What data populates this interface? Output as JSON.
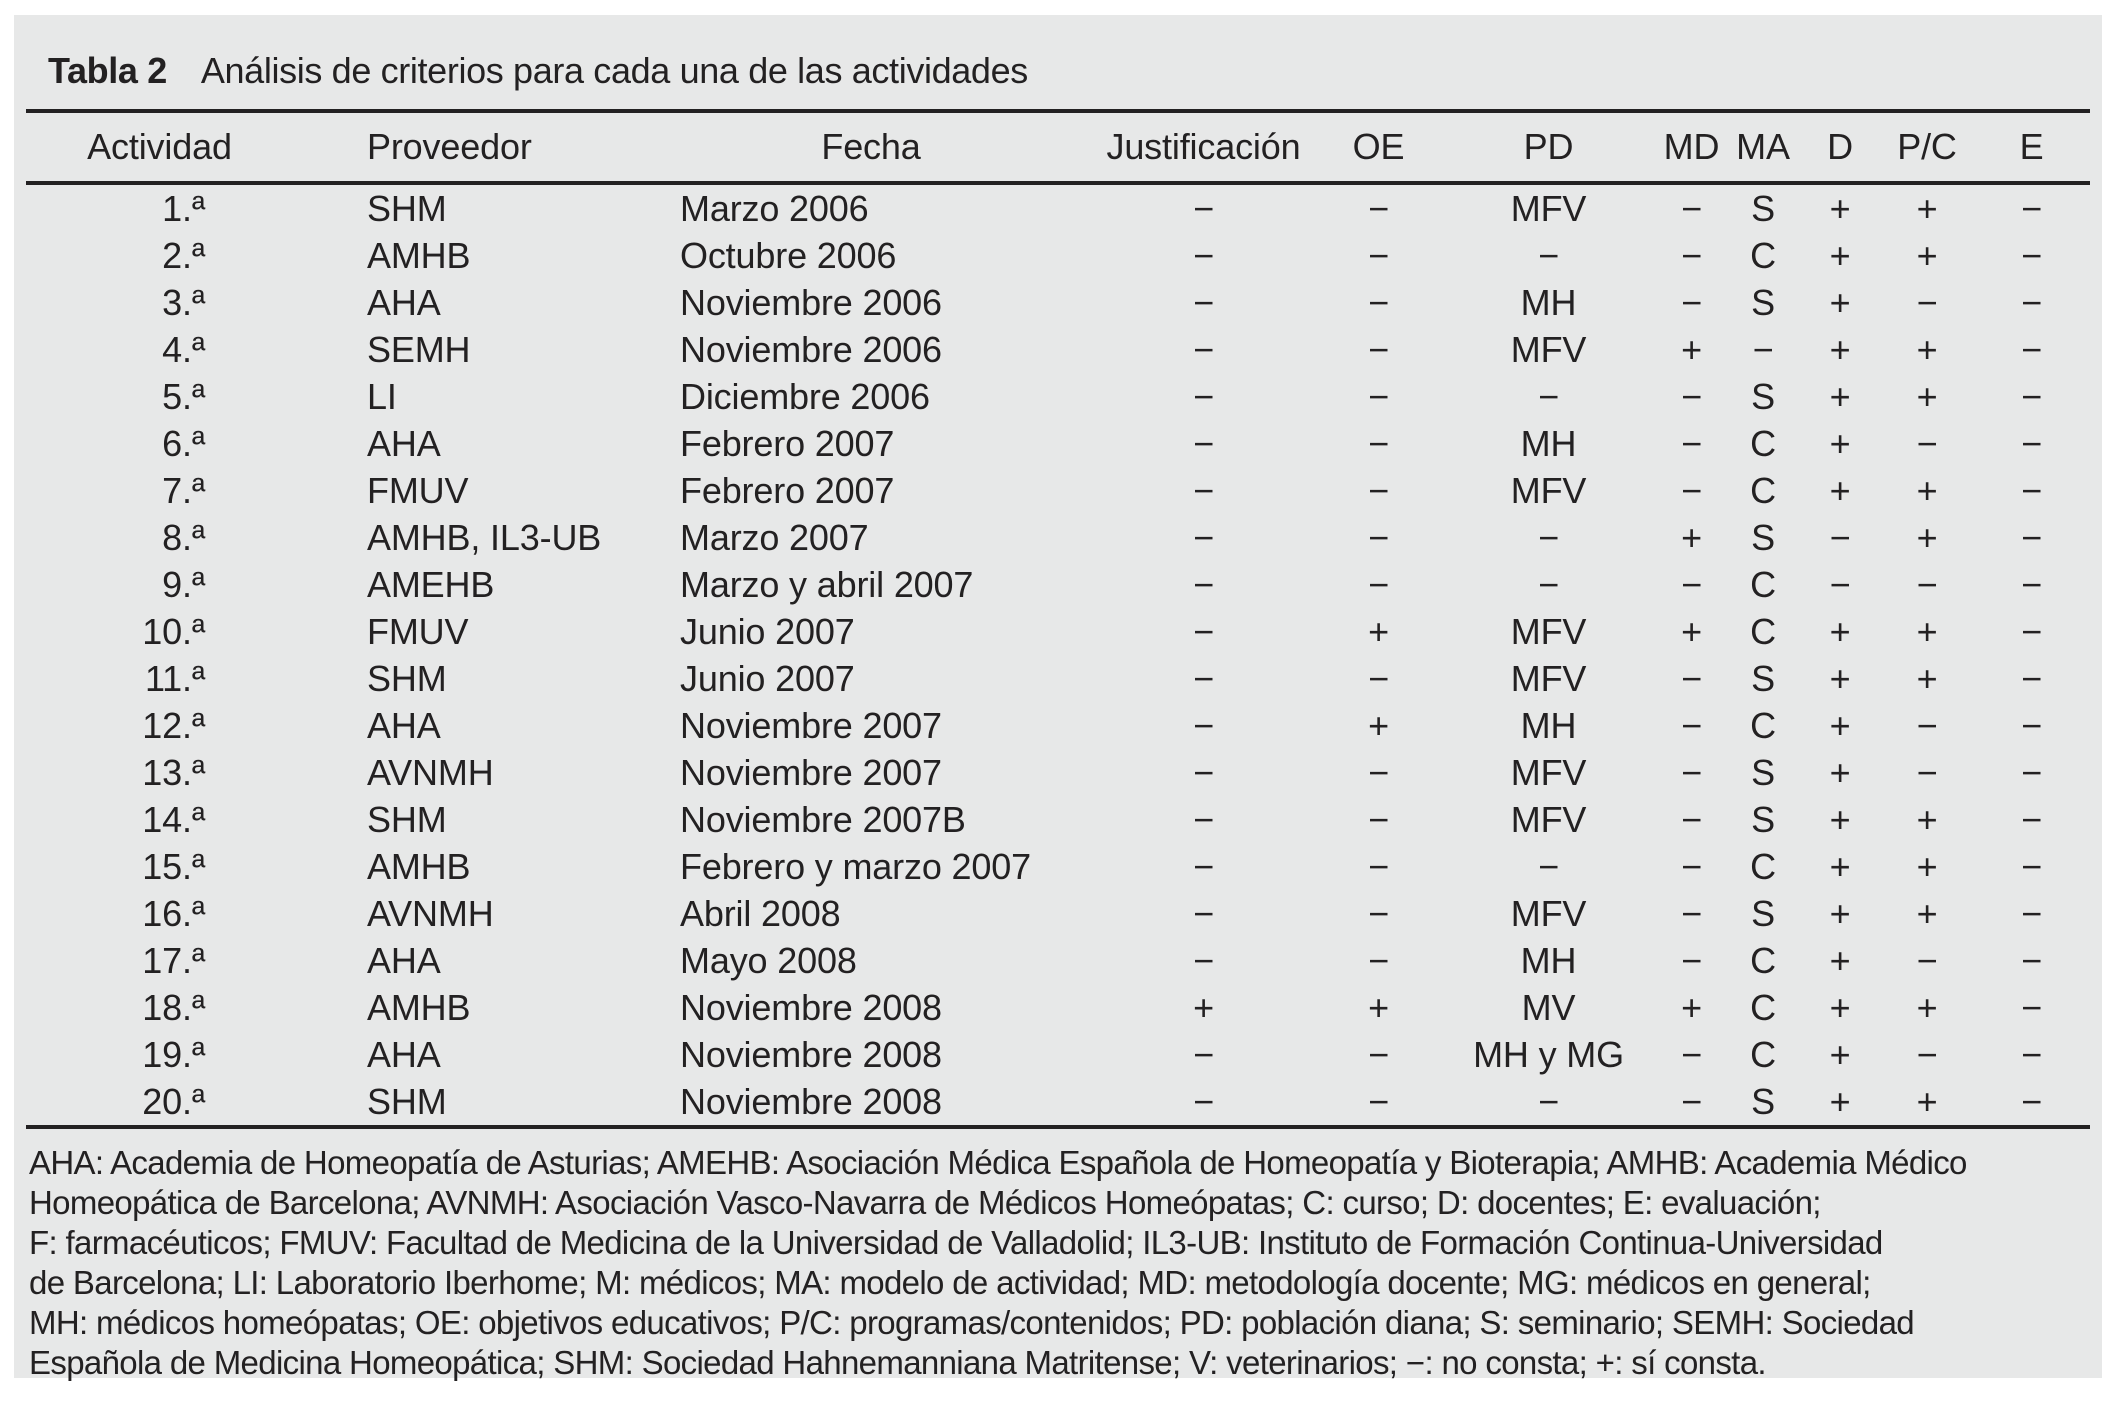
{
  "colors": {
    "panel_background": "#e7e8e8",
    "text": "#232122",
    "rule": "#232122"
  },
  "table": {
    "title_label": "Tabla 2",
    "title_text": "Análisis de criterios para cada una de las actividades",
    "columns": [
      "Actividad",
      "Proveedor",
      "Fecha",
      "Justificación",
      "OE",
      "PD",
      "MD",
      "MA",
      "D",
      "P/C",
      "E"
    ],
    "rows": [
      [
        "1.ª",
        "SHM",
        "Marzo 2006",
        "−",
        "−",
        "MFV",
        "−",
        "S",
        "+",
        "+",
        "−"
      ],
      [
        "2.ª",
        "AMHB",
        "Octubre 2006",
        "−",
        "−",
        "−",
        "−",
        "C",
        "+",
        "+",
        "−"
      ],
      [
        "3.ª",
        "AHA",
        "Noviembre 2006",
        "−",
        "−",
        "MH",
        "−",
        "S",
        "+",
        "−",
        "−"
      ],
      [
        "4.ª",
        "SEMH",
        "Noviembre 2006",
        "−",
        "−",
        "MFV",
        "+",
        "−",
        "+",
        "+",
        "−"
      ],
      [
        "5.ª",
        "LI",
        "Diciembre 2006",
        "−",
        "−",
        "−",
        "−",
        "S",
        "+",
        "+",
        "−"
      ],
      [
        "6.ª",
        "AHA",
        "Febrero 2007",
        "−",
        "−",
        "MH",
        "−",
        "C",
        "+",
        "−",
        "−"
      ],
      [
        "7.ª",
        "FMUV",
        "Febrero 2007",
        "−",
        "−",
        "MFV",
        "−",
        "C",
        "+",
        "+",
        "−"
      ],
      [
        "8.ª",
        "AMHB, IL3-UB",
        "Marzo 2007",
        "−",
        "−",
        "−",
        "+",
        "S",
        "−",
        "+",
        "−"
      ],
      [
        "9.ª",
        "AMEHB",
        "Marzo y abril 2007",
        "−",
        "−",
        "−",
        "−",
        "C",
        "−",
        "−",
        "−"
      ],
      [
        "10.ª",
        "FMUV",
        "Junio 2007",
        "−",
        "+",
        "MFV",
        "+",
        "C",
        "+",
        "+",
        "−"
      ],
      [
        "11.ª",
        "SHM",
        "Junio 2007",
        "−",
        "−",
        "MFV",
        "−",
        "S",
        "+",
        "+",
        "−"
      ],
      [
        "12.ª",
        "AHA",
        "Noviembre 2007",
        "−",
        "+",
        "MH",
        "−",
        "C",
        "+",
        "−",
        "−"
      ],
      [
        "13.ª",
        "AVNMH",
        "Noviembre 2007",
        "−",
        "−",
        "MFV",
        "−",
        "S",
        "+",
        "−",
        "−"
      ],
      [
        "14.ª",
        "SHM",
        "Noviembre 2007B",
        "−",
        "−",
        "MFV",
        "−",
        "S",
        "+",
        "+",
        "−"
      ],
      [
        "15.ª",
        "AMHB",
        "Febrero y marzo 2007",
        "−",
        "−",
        "−",
        "−",
        "C",
        "+",
        "+",
        "−"
      ],
      [
        "16.ª",
        "AVNMH",
        "Abril 2008",
        "−",
        "−",
        "MFV",
        "−",
        "S",
        "+",
        "+",
        "−"
      ],
      [
        "17.ª",
        "AHA",
        "Mayo 2008",
        "−",
        "−",
        "MH",
        "−",
        "C",
        "+",
        "−",
        "−"
      ],
      [
        "18.ª",
        "AMHB",
        "Noviembre 2008",
        "+",
        "+",
        "MV",
        "+",
        "C",
        "+",
        "+",
        "−"
      ],
      [
        "19.ª",
        "AHA",
        "Noviembre 2008",
        "−",
        "−",
        "MH y MG",
        "−",
        "C",
        "+",
        "−",
        "−"
      ],
      [
        "20.ª",
        "SHM",
        "Noviembre 2008",
        "−",
        "−",
        "−",
        "−",
        "S",
        "+",
        "+",
        "−"
      ]
    ],
    "footnote_lines": [
      "AHA: Academia de Homeopatía de Asturias; AMEHB: Asociación Médica Española de Homeopatía y Bioterapia; AMHB: Academia Médico",
      "Homeopática de Barcelona; AVNMH: Asociación Vasco-Navarra de Médicos Homeópatas; C: curso; D: docentes; E: evaluación;",
      "F: farmacéuticos; FMUV: Facultad de Medicina de la Universidad de Valladolid; IL3-UB: Instituto de Formación Continua-Universidad",
      "de Barcelona; LI: Laboratorio Iberhome; M: médicos; MA: modelo de actividad; MD: metodología docente; MG: médicos en general;",
      "MH: médicos homeópatas; OE: objetivos educativos; P/C: programas/contenidos; PD: población diana; S: seminario; SEMH: Sociedad",
      "Española de Medicina Homeopática; SHM: Sociedad Hahnemanniana Matritense; V: veterinarios; −: no consta; +: sí consta."
    ]
  }
}
